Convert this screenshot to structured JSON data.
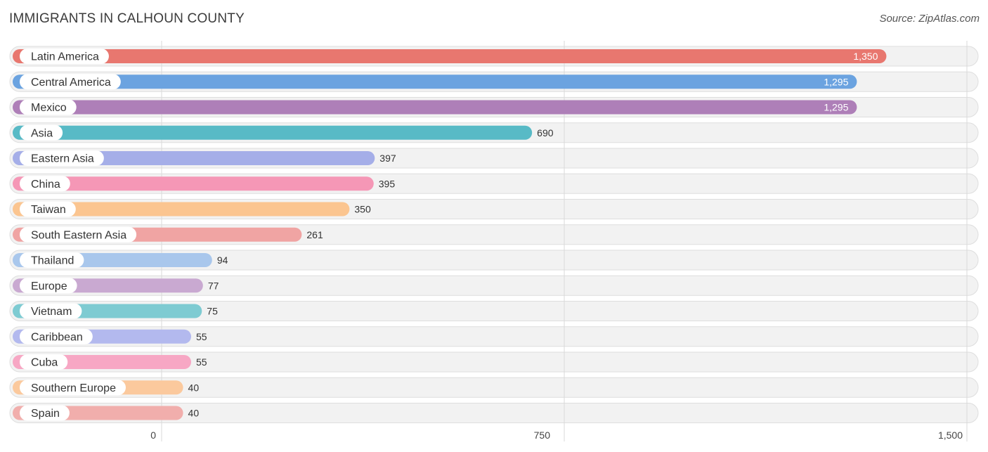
{
  "header": {
    "title": "IMMIGRANTS IN CALHOUN COUNTY",
    "source": "Source: ZipAtlas.com"
  },
  "chart_data": {
    "type": "bar",
    "orientation": "horizontal",
    "title": "IMMIGRANTS IN CALHOUN COUNTY",
    "categories": [
      "Latin America",
      "Central America",
      "Mexico",
      "Asia",
      "Eastern Asia",
      "China",
      "Taiwan",
      "South Eastern Asia",
      "Thailand",
      "Europe",
      "Vietnam",
      "Caribbean",
      "Cuba",
      "Southern Europe",
      "Spain"
    ],
    "values": [
      1350,
      1295,
      1295,
      690,
      397,
      395,
      350,
      261,
      94,
      77,
      75,
      55,
      55,
      40,
      40
    ],
    "value_labels": [
      "1,350",
      "1,295",
      "1,295",
      "690",
      "397",
      "395",
      "350",
      "261",
      "94",
      "77",
      "75",
      "55",
      "55",
      "40",
      "40"
    ],
    "colors": [
      "#e8776f",
      "#6ba3e0",
      "#ae7fb8",
      "#58bac6",
      "#a5aee8",
      "#f597b6",
      "#fbc590",
      "#f0a4a3",
      "#a9c7ec",
      "#c9a9d1",
      "#7ecbd2",
      "#b3b9ee",
      "#f7a7c4",
      "#fbc99d",
      "#f1aeac"
    ],
    "xlim": [
      0,
      1500
    ],
    "xticks": [
      0,
      750,
      1500
    ],
    "xtick_labels": [
      "0",
      "750",
      "1,500"
    ],
    "grid": true
  }
}
